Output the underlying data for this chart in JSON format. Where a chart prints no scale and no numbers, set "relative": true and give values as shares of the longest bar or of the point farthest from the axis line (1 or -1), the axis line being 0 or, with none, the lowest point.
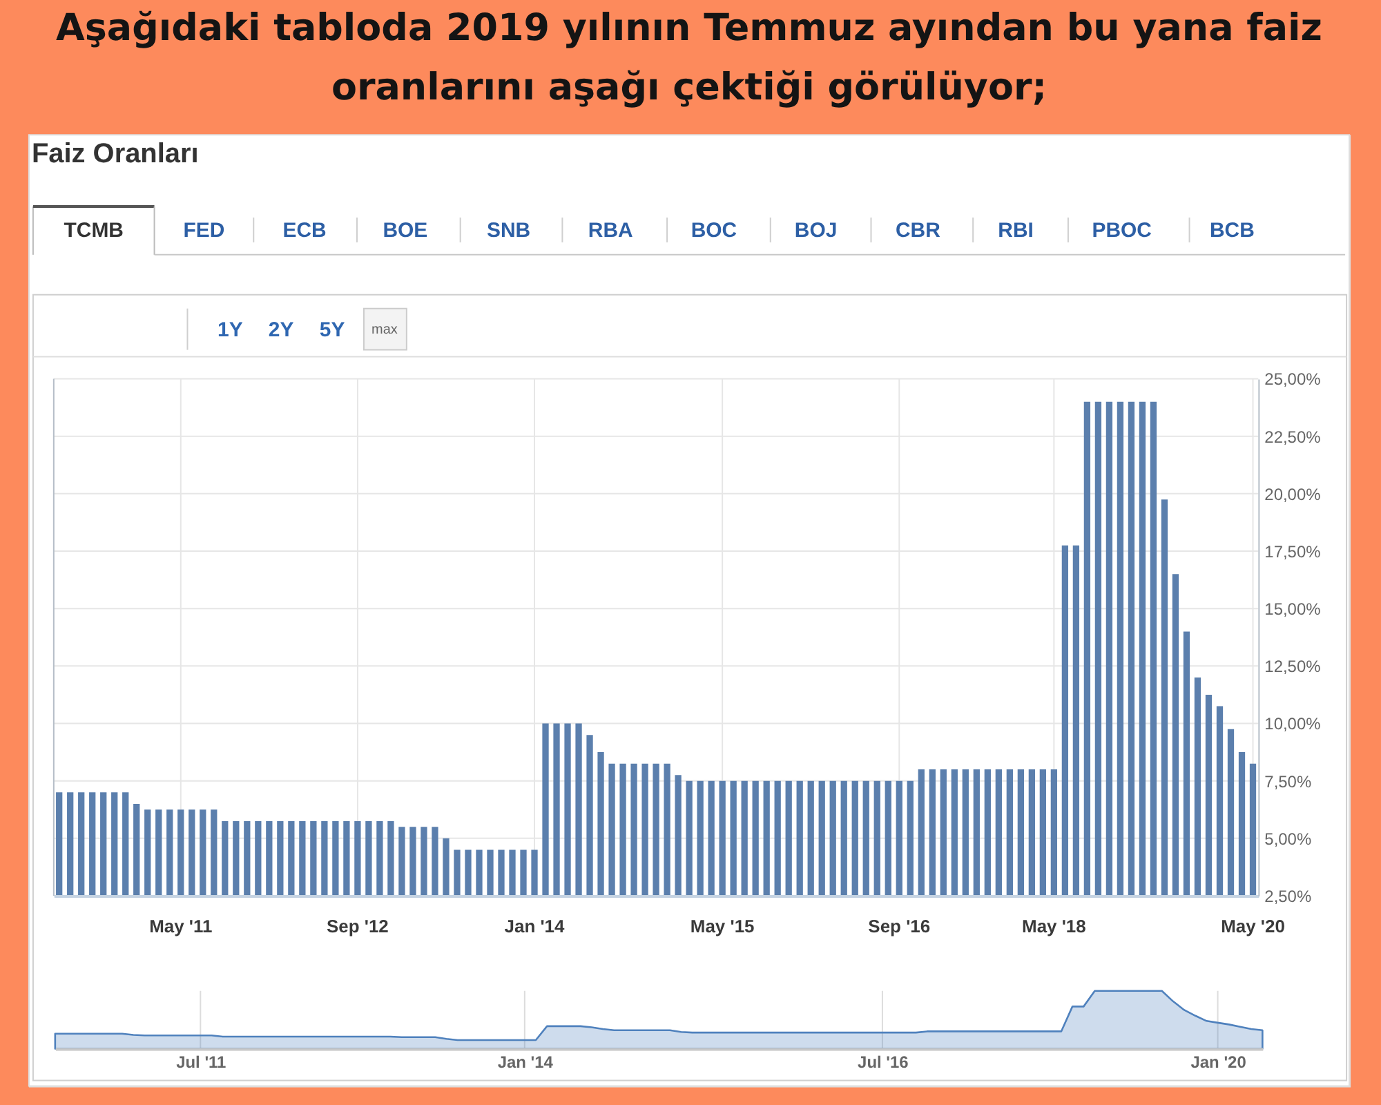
{
  "chart_data": [
    {
      "type": "bar",
      "title": "Aşağıdaki tabloda 2019 yılının Temmuz ayından bu yana faiz oranlarını aşağı çektiği görülüyor;",
      "subtitle": "Faiz Oranları",
      "annotations": [
        "TCMB",
        "FED",
        "ECB",
        "BOE",
        "SNB",
        "RBA",
        "BOC",
        "BOJ",
        "CBR",
        "RBI",
        "PBOC",
        "BCB",
        "1Y",
        "2Y",
        "5Y",
        "max"
      ],
      "categories": [
        null,
        null,
        null,
        null,
        null,
        null,
        null,
        null,
        null,
        null,
        null,
        "May '11",
        null,
        null,
        null,
        null,
        null,
        null,
        null,
        null,
        null,
        null,
        null,
        null,
        null,
        null,
        null,
        "Sep '12",
        null,
        null,
        null,
        null,
        null,
        null,
        null,
        null,
        null,
        null,
        null,
        null,
        null,
        null,
        null,
        "Jan '14",
        null,
        null,
        null,
        null,
        null,
        null,
        null,
        null,
        null,
        null,
        null,
        null,
        null,
        null,
        null,
        null,
        "May '15",
        null,
        null,
        null,
        null,
        null,
        null,
        null,
        null,
        null,
        null,
        null,
        null,
        null,
        null,
        null,
        "Sep '16",
        null,
        null,
        null,
        null,
        null,
        null,
        null,
        null,
        null,
        null,
        null,
        null,
        null,
        "May '18",
        null,
        null,
        null,
        null,
        null,
        null,
        null,
        null,
        null,
        null,
        null,
        null,
        null,
        null,
        null,
        null,
        null,
        "May '20"
      ],
      "values": [
        7,
        7,
        7,
        7,
        7,
        7,
        7,
        6.5,
        6.25,
        6.25,
        6.25,
        6.25,
        6.25,
        6.25,
        6.25,
        5.75,
        5.75,
        5.75,
        5.75,
        5.75,
        5.75,
        5.75,
        5.75,
        5.75,
        5.75,
        5.75,
        5.75,
        5.75,
        5.75,
        5.75,
        5.75,
        5.5,
        5.5,
        5.5,
        5.5,
        5,
        4.5,
        4.5,
        4.5,
        4.5,
        4.5,
        4.5,
        4.5,
        4.5,
        10,
        10,
        10,
        10,
        9.5,
        8.75,
        8.25,
        8.25,
        8.25,
        8.25,
        8.25,
        8.25,
        7.75,
        7.5,
        7.5,
        7.5,
        7.5,
        7.5,
        7.5,
        7.5,
        7.5,
        7.5,
        7.5,
        7.5,
        7.5,
        7.5,
        7.5,
        7.5,
        7.5,
        7.5,
        7.5,
        7.5,
        7.5,
        7.5,
        8,
        8,
        8,
        8,
        8,
        8,
        8,
        8,
        8,
        8,
        8,
        8,
        8,
        17.75,
        17.75,
        24,
        24,
        24,
        24,
        24,
        24,
        24,
        19.75,
        16.5,
        14,
        12,
        11.25,
        10.75,
        9.75,
        8.75,
        8.25
      ],
      "color": "#5b7fad",
      "ylim": [
        2.5,
        25
      ],
      "yticks": [
        {
          "value": 2.5,
          "label": "2,50%"
        },
        {
          "value": 5,
          "label": "5,00%"
        },
        {
          "value": 7.5,
          "label": "7,50%"
        },
        {
          "value": 10,
          "label": "10,00%"
        },
        {
          "value": 12.5,
          "label": "12,50%"
        },
        {
          "value": 15,
          "label": "15,00%"
        },
        {
          "value": 17.5,
          "label": "17,50%"
        },
        {
          "value": 20,
          "label": "20,00%"
        },
        {
          "value": 22.5,
          "label": "22,50%"
        },
        {
          "value": 25,
          "label": "25,00%"
        }
      ],
      "grid": true
    },
    {
      "type": "area",
      "relative": true,
      "color": "#4f81bd",
      "grid": "x",
      "categories": [
        null,
        null,
        null,
        null,
        null,
        null,
        null,
        null,
        null,
        null,
        null,
        null,
        null,
        "Jul '11",
        null,
        null,
        null,
        null,
        null,
        null,
        null,
        null,
        null,
        null,
        null,
        null,
        null,
        null,
        null,
        null,
        null,
        null,
        null,
        null,
        null,
        null,
        null,
        null,
        null,
        null,
        null,
        null,
        "Jan '14",
        null,
        null,
        null,
        null,
        null,
        null,
        null,
        null,
        null,
        null,
        null,
        null,
        null,
        null,
        null,
        null,
        null,
        null,
        null,
        null,
        null,
        null,
        null,
        null,
        null,
        null,
        null,
        null,
        null,
        null,
        null,
        "Jul '16",
        null,
        null,
        null,
        null,
        null,
        null,
        null,
        null,
        null,
        null,
        null,
        null,
        null,
        null,
        null,
        null,
        null,
        null,
        null,
        null,
        null,
        null,
        null,
        null,
        null,
        null,
        null,
        null,
        null,
        "Jan '20",
        null,
        null,
        null,
        null
      ],
      "values": [
        0.26,
        0.26,
        0.26,
        0.26,
        0.26,
        0.26,
        0.26,
        0.24,
        0.23,
        0.23,
        0.23,
        0.23,
        0.23,
        0.23,
        0.23,
        0.21,
        0.21,
        0.21,
        0.21,
        0.21,
        0.21,
        0.21,
        0.21,
        0.21,
        0.21,
        0.21,
        0.21,
        0.21,
        0.21,
        0.21,
        0.21,
        0.2,
        0.2,
        0.2,
        0.2,
        0.17,
        0.15,
        0.15,
        0.15,
        0.15,
        0.15,
        0.15,
        0.15,
        0.15,
        0.39,
        0.39,
        0.39,
        0.39,
        0.37,
        0.34,
        0.32,
        0.32,
        0.32,
        0.32,
        0.32,
        0.32,
        0.29,
        0.28,
        0.28,
        0.28,
        0.28,
        0.28,
        0.28,
        0.28,
        0.28,
        0.28,
        0.28,
        0.28,
        0.28,
        0.28,
        0.28,
        0.28,
        0.28,
        0.28,
        0.28,
        0.28,
        0.28,
        0.28,
        0.3,
        0.3,
        0.3,
        0.3,
        0.3,
        0.3,
        0.3,
        0.3,
        0.3,
        0.3,
        0.3,
        0.3,
        0.3,
        0.73,
        0.73,
        1,
        1,
        1,
        1,
        1,
        1,
        1,
        0.82,
        0.67,
        0.57,
        0.48,
        0.45,
        0.42,
        0.38,
        0.34,
        0.32
      ]
    }
  ]
}
